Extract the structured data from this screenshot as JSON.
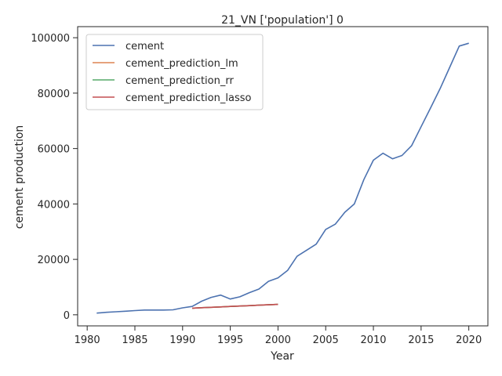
{
  "chart_data": {
    "type": "line",
    "title": "21_VN ['population'] 0",
    "xlabel": "Year",
    "ylabel": "cement production",
    "xlim": [
      1979,
      2022
    ],
    "ylim": [
      -4000,
      104000
    ],
    "xticks": [
      1980,
      1985,
      1990,
      1995,
      2000,
      2005,
      2010,
      2015,
      2020
    ],
    "yticks": [
      0,
      20000,
      40000,
      60000,
      80000,
      100000
    ],
    "grid": false,
    "legend_position": "top-left",
    "series": [
      {
        "name": "cement",
        "color": "#4c72b0",
        "x": [
          1981,
          1982,
          1983,
          1984,
          1985,
          1986,
          1987,
          1988,
          1989,
          1990,
          1991,
          1992,
          1993,
          1994,
          1995,
          1996,
          1997,
          1998,
          1999,
          2000,
          2001,
          2002,
          2003,
          2004,
          2005,
          2006,
          2007,
          2008,
          2009,
          2010,
          2011,
          2012,
          2013,
          2014,
          2015,
          2016,
          2017,
          2018,
          2019,
          2020
        ],
        "values": [
          600,
          900,
          1100,
          1300,
          1500,
          1700,
          1700,
          1700,
          1800,
          2500,
          3000,
          4900,
          6300,
          7100,
          5700,
          6500,
          8000,
          9300,
          12100,
          13300,
          16000,
          21100,
          23300,
          25500,
          30800,
          32700,
          37000,
          40000,
          48800,
          55800,
          58300,
          56300,
          57500,
          61000,
          67900,
          74700,
          81700,
          89300,
          97000,
          98000
        ]
      },
      {
        "name": "cement_prediction_lm",
        "color": "#dd8452",
        "x": [
          1991,
          1992,
          1993,
          1994,
          1995,
          1996,
          1997,
          1998,
          1999,
          2000
        ],
        "values": [
          2400,
          2550,
          2700,
          2850,
          3000,
          3150,
          3300,
          3450,
          3600,
          3750
        ]
      },
      {
        "name": "cement_prediction_rr",
        "color": "#55a868",
        "x": [
          1991,
          1992,
          1993,
          1994,
          1995,
          1996,
          1997,
          1998,
          1999,
          2000
        ],
        "values": [
          2400,
          2550,
          2700,
          2850,
          3000,
          3150,
          3300,
          3450,
          3600,
          3750
        ]
      },
      {
        "name": "cement_prediction_lasso",
        "color": "#c44e52",
        "x": [
          1991,
          1992,
          1993,
          1994,
          1995,
          1996,
          1997,
          1998,
          1999,
          2000
        ],
        "values": [
          2400,
          2550,
          2700,
          2850,
          3000,
          3150,
          3300,
          3450,
          3600,
          3750
        ]
      }
    ]
  }
}
